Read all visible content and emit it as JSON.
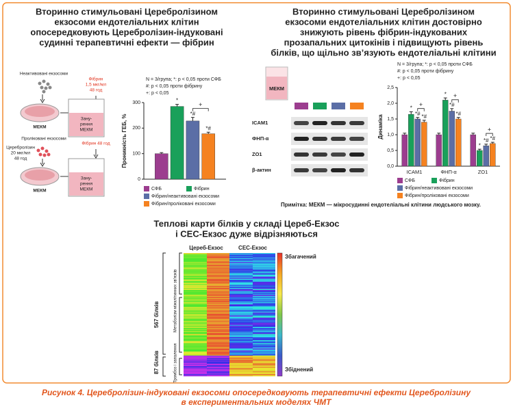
{
  "figure": {
    "left_title": [
      "Вторинно стимульовані Церебролізином",
      "екзосоми ендотеліальних клітин",
      "опосередковують Церебролізин-індуковані",
      "судинні терапевтичні ефекти — фібрин"
    ],
    "right_title": [
      "Вторинно стимульовані Церебролізином",
      "екзосоми ендотеліальних клітин достовірно",
      "знижують рівень фібрин-індукованих",
      "прозапальних цитокінів і підвищують рівень",
      "білків, що щільно зв’язують ендотеліальні клітини"
    ],
    "scheme": {
      "inactive_exosomes": "Неактивовані екзосоми",
      "treated_exosomes": "Проліковані екзосоми",
      "fibrin_dose": [
        "Фібрин",
        "1,5 мкг/мл",
        "48 год"
      ],
      "cerebrolysin_dose": [
        "Церебролізин",
        "20 мкг/мл",
        "48 год"
      ],
      "fibrin_48": "Фібрин 48 год",
      "cell_label_1": "МЕКМ",
      "cell_label_2": "МЕКМ",
      "immersion_1": [
        "Зану-",
        "рення",
        "МЕКМ"
      ],
      "immersion_2": [
        "Зану-",
        "рення",
        "МЕКМ"
      ]
    },
    "blot": {
      "tube": "МЕКМ",
      "rows": [
        "ICAM1",
        "ФНП-α",
        "ZO1",
        "β-актин"
      ]
    },
    "note": "Примітка: МЕКМ — мікросудинні ендотеліальні клітини людського мозку.",
    "heatmap": {
      "title": [
        "Теплові карти білків у складі Цереб-Екзос",
        "і СЕС-Екзос дуже відрізняються"
      ],
      "columns": [
        "Цереб-Екзос",
        "СЕС-Екзос"
      ],
      "scale_top": "Збагачений",
      "scale_bottom": "Збіднений",
      "groups": [
        "567 білків",
        "87 білків"
      ],
      "clusters": [
        "Метаболізм міжклітинних зв'язків",
        "Тромбоз і запалення"
      ]
    },
    "caption": [
      "Рисунок 4. Церебролізин-індуковані екзосоми опосередковують терапевтичні ефекти Церебролізину",
      "в експериментальних моделях ЧМТ"
    ]
  },
  "chart_data": [
    {
      "type": "bar",
      "ylabel": "Проникність ГЕБ, %",
      "notes": [
        "N = 3/група; *: p < 0,05 проти СФБ",
        "#: p < 0,05 проти фібрину",
        "+: p < 0,05"
      ],
      "categories": [
        null
      ],
      "series": [
        {
          "name": "СФБ",
          "color": "#9c3d8f",
          "values": [
            100
          ],
          "errors": [
            4
          ],
          "markers": [
            null
          ]
        },
        {
          "name": "Фібрин",
          "color": "#19a05a",
          "values": [
            285
          ],
          "errors": [
            8
          ],
          "markers": [
            "*"
          ]
        },
        {
          "name": "Фібрин/неактивовані екзосоми",
          "color": "#5b6ea6",
          "values": [
            228
          ],
          "errors": [
            14
          ],
          "markers": [
            "*#"
          ]
        },
        {
          "name": "Фібрин/проліковані екзосоми",
          "color": "#f58220",
          "values": [
            178
          ],
          "errors": [
            6
          ],
          "markers": [
            "*#"
          ]
        }
      ],
      "bracket": "+",
      "ylim": [
        0,
        300
      ],
      "yticks": [
        0,
        100,
        200,
        300
      ]
    },
    {
      "type": "bar",
      "ylabel": "Динаміка",
      "notes": [
        "N = 3/група; *: p < 0,05 проти СФБ",
        "#: p < 0,05 проти фібрину",
        "+: p < 0,05"
      ],
      "categories": [
        "ICAM1",
        "ФНП-α",
        "ZO1"
      ],
      "series": [
        {
          "name": "СФБ",
          "color": "#9c3d8f",
          "values": [
            1.0,
            1.0,
            1.0
          ],
          "errors": [
            0.05,
            0.05,
            0.05
          ],
          "markers": [
            null,
            null,
            null
          ]
        },
        {
          "name": "Фібрин",
          "color": "#19a05a",
          "values": [
            1.65,
            2.1,
            0.5
          ],
          "errors": [
            0.08,
            0.07,
            0.04
          ],
          "markers": [
            "*",
            "*",
            "*"
          ]
        },
        {
          "name": "Фібрин/неактивовані екзосоми",
          "color": "#5b6ea6",
          "values": [
            1.5,
            1.75,
            0.65
          ],
          "errors": [
            0.05,
            0.08,
            0.05
          ],
          "markers": [
            "*#",
            "*#",
            "*#"
          ]
        },
        {
          "name": "Фібрин/проліковані екзосоми",
          "color": "#f58220",
          "values": [
            1.4,
            1.5,
            0.72
          ],
          "errors": [
            0.06,
            0.05,
            0.04
          ],
          "markers": [
            "*#",
            "*#",
            "*#"
          ]
        }
      ],
      "bracket": "+",
      "ylim": [
        0,
        2.5
      ],
      "yticks": [
        {
          "value": 0,
          "label": "0,0"
        },
        {
          "value": 0.5,
          "label": "0,5"
        },
        {
          "value": 1,
          "label": "1,0"
        },
        {
          "value": 1.5,
          "label": "1,5"
        },
        {
          "value": 2,
          "label": "2,0"
        },
        {
          "value": 2.5,
          "label": "2,5"
        }
      ]
    }
  ]
}
